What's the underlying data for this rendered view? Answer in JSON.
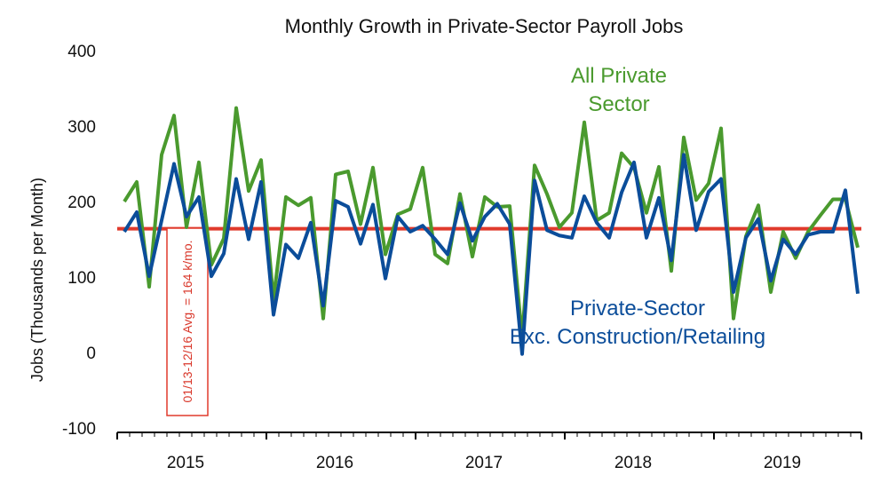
{
  "chart_data": {
    "type": "line",
    "title": "Monthly Growth in Private-Sector Payroll Jobs",
    "ylabel": "Jobs (Thousands per Month)",
    "xlabel": "",
    "ylim": [
      -100,
      400
    ],
    "yticks": [
      "400",
      "300",
      "200",
      "100",
      "0",
      "-100"
    ],
    "x_start": "2015-01",
    "x_end": "2019-12",
    "years": [
      "2015",
      "2016",
      "2017",
      "2018",
      "2019"
    ],
    "grid": false,
    "reference_line": {
      "value": 164,
      "label": "01/13-12/16 Avg. = 164 k/mo.",
      "color": "#e03a2c"
    },
    "series": [
      {
        "name": "All Private Sector",
        "label_lines": [
          "All Private",
          "Sector"
        ],
        "color": "#4a9a2e",
        "values": [
          200,
          226,
          87,
          262,
          314,
          166,
          252,
          116,
          151,
          324,
          214,
          255,
          70,
          206,
          195,
          205,
          45,
          236,
          240,
          170,
          245,
          130,
          183,
          190,
          245,
          130,
          118,
          210,
          127,
          206,
          193,
          194,
          20,
          248,
          210,
          166,
          185,
          305,
          175,
          185,
          264,
          245,
          185,
          246,
          108,
          285,
          202,
          224,
          297,
          45,
          154,
          195,
          80,
          160,
          125,
          160,
          182,
          203,
          203,
          139
        ]
      },
      {
        "name": "Private-Sector Exc. Construction/Retailing",
        "label_lines": [
          "Private-Sector",
          "Exc. Construction/Retailing"
        ],
        "color": "#0b4d9a",
        "values": [
          160,
          186,
          101,
          175,
          250,
          180,
          206,
          101,
          131,
          230,
          150,
          226,
          50,
          143,
          125,
          172,
          62,
          201,
          193,
          144,
          196,
          98,
          180,
          160,
          168,
          150,
          130,
          198,
          148,
          180,
          197,
          170,
          -2,
          228,
          162,
          155,
          152,
          207,
          172,
          152,
          212,
          252,
          152,
          205,
          122,
          262,
          162,
          213,
          230,
          80,
          152,
          177,
          95,
          150,
          130,
          156,
          160,
          160,
          215,
          78
        ]
      }
    ]
  }
}
